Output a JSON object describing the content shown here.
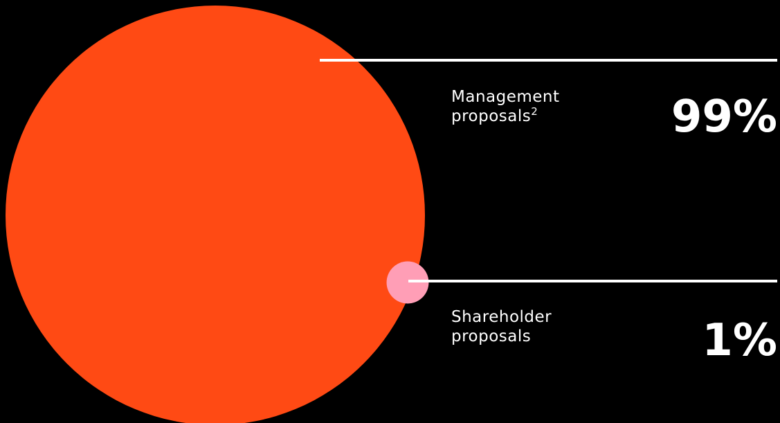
{
  "chart_data": {
    "type": "bubble",
    "categories": [
      "Management proposals",
      "Shareholder proposals"
    ],
    "footnotes": [
      "2",
      null
    ],
    "values": [
      99,
      1
    ],
    "value_labels": [
      "99%",
      "1%"
    ],
    "colors": [
      "#ff4a14",
      "#ff9eb6"
    ],
    "line_color": "#ffffff"
  }
}
